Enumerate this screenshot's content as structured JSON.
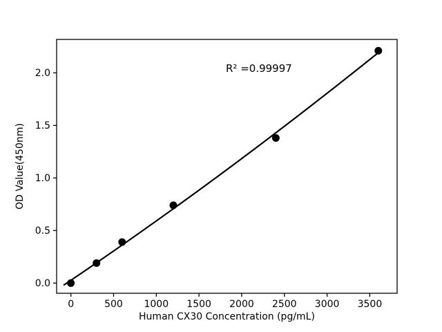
{
  "chart_data": {
    "type": "scatter",
    "title": "",
    "xlabel": "Human CX30 Concentration (pg/mL)",
    "ylabel": "OD Value(450nm)",
    "annotation": "R² =0.99997",
    "x": [
      0,
      300,
      600,
      1200,
      2400,
      3600
    ],
    "y": [
      0.0,
      0.19,
      0.39,
      0.74,
      1.38,
      2.21
    ],
    "x_ticks": [
      0,
      500,
      1000,
      1500,
      2000,
      2500,
      3000,
      3500
    ],
    "x_tick_labels": [
      "0",
      "500",
      "1000",
      "1500",
      "2000",
      "2500",
      "3000",
      "3500"
    ],
    "y_ticks": [
      0.0,
      0.5,
      1.0,
      1.5,
      2.0
    ],
    "y_tick_labels": [
      "0.0",
      "0.5",
      "1.0",
      "1.5",
      "2.0"
    ],
    "xlim": [
      -167,
      3820
    ],
    "ylim": [
      -0.097,
      2.318
    ],
    "grid": false,
    "legend": "none",
    "marker_color": "#000000",
    "line_color": "#000000",
    "background": "#ffffff",
    "fit": {
      "type": "quadratic",
      "a": 0.0263,
      "b": 0.00055039,
      "c": 1.4252e-08,
      "x_start": -80,
      "x_end": 3600
    }
  }
}
